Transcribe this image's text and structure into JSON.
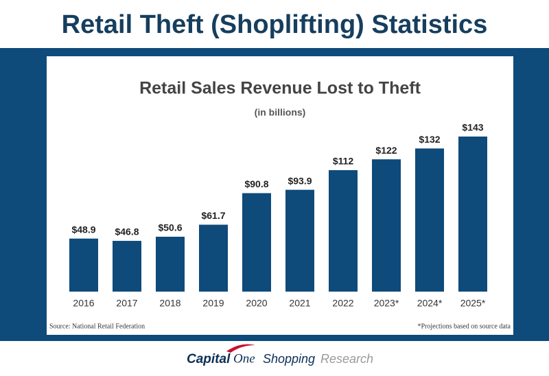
{
  "heading": "Retail Theft (Shoplifting) Statistics",
  "chart_data": {
    "type": "bar",
    "title": "Retail Sales Revenue Lost to Theft",
    "subtitle": "(in billions)",
    "categories": [
      "2016",
      "2017",
      "2018",
      "2019",
      "2020",
      "2021",
      "2022",
      "2023*",
      "2024*",
      "2025*"
    ],
    "values": [
      48.9,
      46.8,
      50.6,
      61.7,
      90.8,
      93.9,
      112,
      122,
      132,
      143
    ],
    "value_labels": [
      "$48.9",
      "$46.8",
      "$50.6",
      "$61.7",
      "$90.8",
      "$93.9",
      "$112",
      "$122",
      "$132",
      "$143"
    ],
    "color": "#0e4a7a",
    "source": "Source: National Retail Federation",
    "note": "*Projections based on source data"
  },
  "footer": {
    "brand_a": "Capital",
    "brand_b": "One",
    "product": "Shopping",
    "section": "Research"
  }
}
